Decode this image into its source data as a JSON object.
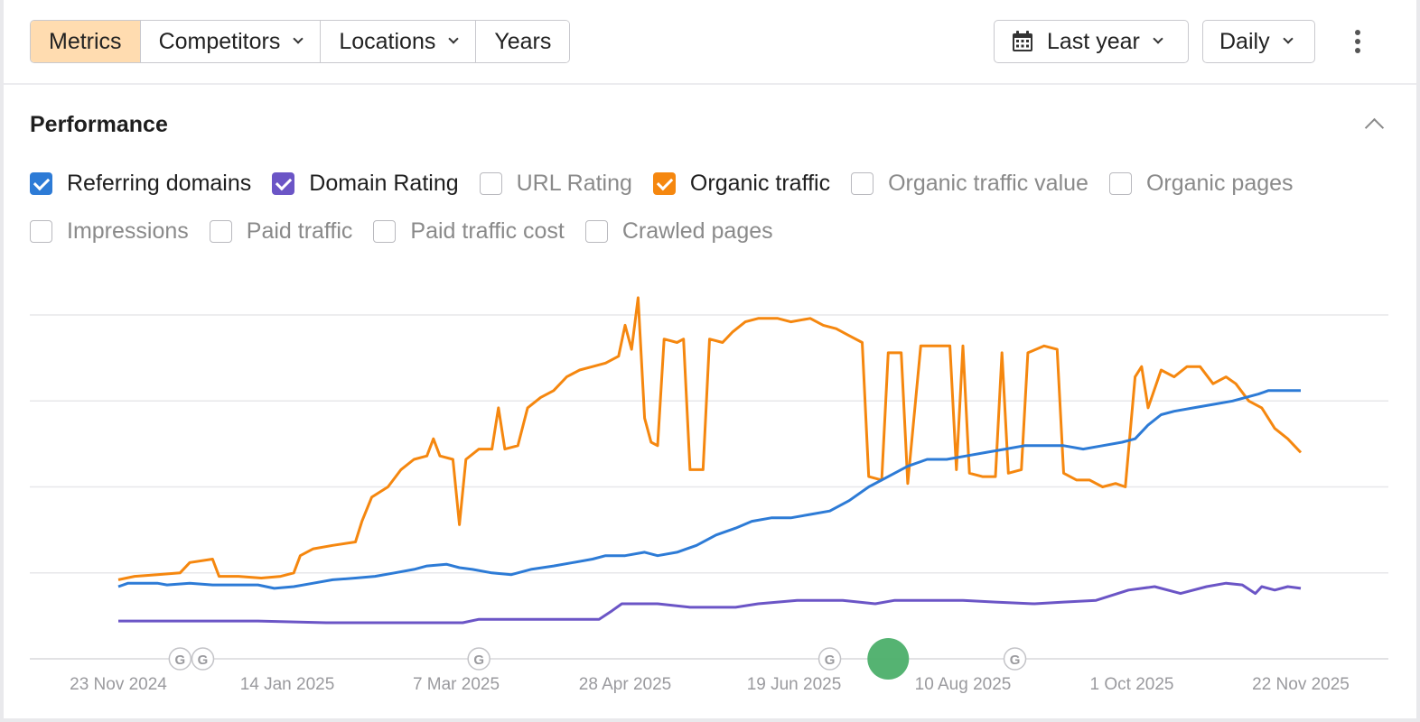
{
  "toolbar": {
    "tabs": [
      {
        "label": "Metrics",
        "active": true,
        "dropdown": false
      },
      {
        "label": "Competitors",
        "active": false,
        "dropdown": true
      },
      {
        "label": "Locations",
        "active": false,
        "dropdown": true
      },
      {
        "label": "Years",
        "active": false,
        "dropdown": false
      }
    ],
    "date_range": {
      "label": "Last year",
      "icon": "calendar-icon"
    },
    "interval": {
      "label": "Daily"
    },
    "more_icon": "kebab-menu-icon"
  },
  "performance": {
    "title": "Performance",
    "collapse_icon": "chevron-up-icon",
    "metrics_row1": [
      {
        "label": "Referring domains",
        "checked": true,
        "color": "#2d7bd6"
      },
      {
        "label": "Domain Rating",
        "checked": true,
        "color": "#6b55c6"
      },
      {
        "label": "URL Rating",
        "checked": false,
        "color": ""
      },
      {
        "label": "Organic traffic",
        "checked": true,
        "color": "#f5870f"
      },
      {
        "label": "Organic traffic value",
        "checked": false,
        "color": ""
      },
      {
        "label": "Organic pages",
        "checked": false,
        "color": ""
      }
    ],
    "metrics_row2": [
      {
        "label": "Impressions",
        "checked": false,
        "color": ""
      },
      {
        "label": "Paid traffic",
        "checked": false,
        "color": ""
      },
      {
        "label": "Paid traffic cost",
        "checked": false,
        "color": ""
      },
      {
        "label": "Crawled pages",
        "checked": false,
        "color": ""
      }
    ]
  },
  "chart_data": {
    "type": "line",
    "grid": true,
    "y_axis_labels": false,
    "x_tick_labels": [
      "23 Nov 2024",
      "14 Jan 2025",
      "7 Mar 2025",
      "28 Apr 2025",
      "19 Jun 2025",
      "10 Aug 2025",
      "1 Oct 2025",
      "22 Nov 2025"
    ],
    "x_range": [
      "2024-11-23",
      "2025-11-22"
    ],
    "y_range": [
      0,
      100
    ],
    "grid_lines": 5,
    "annotation_marker": {
      "label": "G",
      "icon": "google-update-icon",
      "dates": [
        "2024-12-12",
        "2024-12-19",
        "2025-03-14",
        "2025-06-30",
        "2025-08-26"
      ]
    },
    "current_marker": {
      "date": "2025-07-18",
      "color": "#4caf6a"
    },
    "series": [
      {
        "color": "#f5870f",
        "points": [
          [
            "2024-11-23",
            23
          ],
          [
            "2024-11-28",
            24
          ],
          [
            "2024-12-05",
            24.5
          ],
          [
            "2024-12-12",
            25
          ],
          [
            "2024-12-15",
            28
          ],
          [
            "2024-12-22",
            29
          ],
          [
            "2024-12-24",
            24
          ],
          [
            "2024-12-30",
            24
          ],
          [
            "2025-01-06",
            23.5
          ],
          [
            "2025-01-12",
            24
          ],
          [
            "2025-01-16",
            25
          ],
          [
            "2025-01-18",
            30
          ],
          [
            "2025-01-22",
            32
          ],
          [
            "2025-01-28",
            33
          ],
          [
            "2025-02-04",
            34
          ],
          [
            "2025-02-06",
            40
          ],
          [
            "2025-02-09",
            47
          ],
          [
            "2025-02-14",
            50
          ],
          [
            "2025-02-18",
            55
          ],
          [
            "2025-02-22",
            58
          ],
          [
            "2025-02-26",
            59
          ],
          [
            "2025-02-28",
            64
          ],
          [
            "2025-03-02",
            59
          ],
          [
            "2025-03-06",
            58
          ],
          [
            "2025-03-08",
            39
          ],
          [
            "2025-03-10",
            58
          ],
          [
            "2025-03-14",
            61
          ],
          [
            "2025-03-18",
            61
          ],
          [
            "2025-03-20",
            73
          ],
          [
            "2025-03-22",
            61
          ],
          [
            "2025-03-26",
            62
          ],
          [
            "2025-03-29",
            73
          ],
          [
            "2025-04-02",
            76
          ],
          [
            "2025-04-06",
            78
          ],
          [
            "2025-04-10",
            82
          ],
          [
            "2025-04-14",
            84
          ],
          [
            "2025-04-18",
            85
          ],
          [
            "2025-04-22",
            86
          ],
          [
            "2025-04-26",
            88
          ],
          [
            "2025-04-28",
            97
          ],
          [
            "2025-04-30",
            90
          ],
          [
            "2025-05-02",
            105
          ],
          [
            "2025-05-04",
            70
          ],
          [
            "2025-05-06",
            63
          ],
          [
            "2025-05-08",
            62
          ],
          [
            "2025-05-10",
            93
          ],
          [
            "2025-05-14",
            92
          ],
          [
            "2025-05-16",
            93
          ],
          [
            "2025-05-18",
            55
          ],
          [
            "2025-05-22",
            55
          ],
          [
            "2025-05-24",
            93
          ],
          [
            "2025-05-28",
            92
          ],
          [
            "2025-05-31",
            95
          ],
          [
            "2025-06-04",
            98
          ],
          [
            "2025-06-08",
            99
          ],
          [
            "2025-06-14",
            99
          ],
          [
            "2025-06-18",
            98
          ],
          [
            "2025-06-24",
            99
          ],
          [
            "2025-06-28",
            97
          ],
          [
            "2025-07-02",
            96
          ],
          [
            "2025-07-06",
            94
          ],
          [
            "2025-07-10",
            92
          ],
          [
            "2025-07-12",
            53
          ],
          [
            "2025-07-16",
            52
          ],
          [
            "2025-07-18",
            89
          ],
          [
            "2025-07-22",
            89
          ],
          [
            "2025-07-24",
            51
          ],
          [
            "2025-07-28",
            91
          ],
          [
            "2025-08-02",
            91
          ],
          [
            "2025-08-06",
            91
          ],
          [
            "2025-08-08",
            55
          ],
          [
            "2025-08-10",
            91
          ],
          [
            "2025-08-12",
            54
          ],
          [
            "2025-08-16",
            53
          ],
          [
            "2025-08-20",
            53
          ],
          [
            "2025-08-22",
            89
          ],
          [
            "2025-08-24",
            54
          ],
          [
            "2025-08-28",
            55
          ],
          [
            "2025-08-30",
            89
          ],
          [
            "2025-09-04",
            91
          ],
          [
            "2025-09-08",
            90
          ],
          [
            "2025-09-10",
            54
          ],
          [
            "2025-09-14",
            52
          ],
          [
            "2025-09-18",
            52
          ],
          [
            "2025-09-22",
            50
          ],
          [
            "2025-09-26",
            51
          ],
          [
            "2025-09-29",
            50
          ],
          [
            "2025-10-02",
            82
          ],
          [
            "2025-10-04",
            85
          ],
          [
            "2025-10-06",
            73
          ],
          [
            "2025-10-10",
            84
          ],
          [
            "2025-10-14",
            82
          ],
          [
            "2025-10-18",
            85
          ],
          [
            "2025-10-22",
            85
          ],
          [
            "2025-10-26",
            80
          ],
          [
            "2025-10-30",
            82
          ],
          [
            "2025-11-02",
            80
          ],
          [
            "2025-11-06",
            75
          ],
          [
            "2025-11-10",
            73
          ],
          [
            "2025-11-14",
            67
          ],
          [
            "2025-11-18",
            64
          ],
          [
            "2025-11-20",
            62
          ],
          [
            "2025-11-22",
            60
          ]
        ]
      },
      {
        "color": "#2d7bd6",
        "points": [
          [
            "2024-11-23",
            21
          ],
          [
            "2024-11-26",
            22
          ],
          [
            "2024-12-05",
            22
          ],
          [
            "2024-12-08",
            21.5
          ],
          [
            "2024-12-15",
            22
          ],
          [
            "2024-12-22",
            21.5
          ],
          [
            "2024-12-29",
            21.5
          ],
          [
            "2025-01-05",
            21.5
          ],
          [
            "2025-01-10",
            20.5
          ],
          [
            "2025-01-16",
            21
          ],
          [
            "2025-01-22",
            22
          ],
          [
            "2025-01-28",
            23
          ],
          [
            "2025-02-04",
            23.5
          ],
          [
            "2025-02-10",
            24
          ],
          [
            "2025-02-16",
            25
          ],
          [
            "2025-02-22",
            26
          ],
          [
            "2025-02-26",
            27
          ],
          [
            "2025-03-04",
            27.5
          ],
          [
            "2025-03-08",
            26.5
          ],
          [
            "2025-03-12",
            26
          ],
          [
            "2025-03-18",
            25
          ],
          [
            "2025-03-24",
            24.5
          ],
          [
            "2025-03-30",
            26
          ],
          [
            "2025-04-06",
            27
          ],
          [
            "2025-04-12",
            28
          ],
          [
            "2025-04-18",
            29
          ],
          [
            "2025-04-22",
            30
          ],
          [
            "2025-04-28",
            30
          ],
          [
            "2025-05-04",
            31
          ],
          [
            "2025-05-08",
            30
          ],
          [
            "2025-05-14",
            31
          ],
          [
            "2025-05-20",
            33
          ],
          [
            "2025-05-26",
            36
          ],
          [
            "2025-06-01",
            38
          ],
          [
            "2025-06-06",
            40
          ],
          [
            "2025-06-12",
            41
          ],
          [
            "2025-06-18",
            41
          ],
          [
            "2025-06-24",
            42
          ],
          [
            "2025-06-30",
            43
          ],
          [
            "2025-07-06",
            46
          ],
          [
            "2025-07-12",
            50
          ],
          [
            "2025-07-18",
            53
          ],
          [
            "2025-07-24",
            56
          ],
          [
            "2025-07-30",
            58
          ],
          [
            "2025-08-05",
            58
          ],
          [
            "2025-08-11",
            59
          ],
          [
            "2025-08-17",
            60
          ],
          [
            "2025-08-23",
            61
          ],
          [
            "2025-08-29",
            62
          ],
          [
            "2025-09-04",
            62
          ],
          [
            "2025-09-10",
            62
          ],
          [
            "2025-09-16",
            61
          ],
          [
            "2025-09-22",
            62
          ],
          [
            "2025-09-28",
            63
          ],
          [
            "2025-10-02",
            64
          ],
          [
            "2025-10-06",
            68
          ],
          [
            "2025-10-10",
            71
          ],
          [
            "2025-10-14",
            72
          ],
          [
            "2025-10-20",
            73
          ],
          [
            "2025-10-26",
            74
          ],
          [
            "2025-11-01",
            75
          ],
          [
            "2025-11-05",
            76
          ],
          [
            "2025-11-09",
            77
          ],
          [
            "2025-11-12",
            78
          ],
          [
            "2025-11-15",
            78
          ],
          [
            "2025-11-18",
            78
          ],
          [
            "2025-11-22",
            78
          ]
        ]
      },
      {
        "color": "#6b55c6",
        "points": [
          [
            "2024-11-23",
            11
          ],
          [
            "2024-12-15",
            11
          ],
          [
            "2025-01-05",
            11
          ],
          [
            "2025-01-26",
            10.5
          ],
          [
            "2025-02-16",
            10.5
          ],
          [
            "2025-03-09",
            10.5
          ],
          [
            "2025-03-14",
            11.5
          ],
          [
            "2025-03-30",
            11.5
          ],
          [
            "2025-04-20",
            11.5
          ],
          [
            "2025-04-24",
            14
          ],
          [
            "2025-04-27",
            16
          ],
          [
            "2025-05-08",
            16
          ],
          [
            "2025-05-18",
            15
          ],
          [
            "2025-06-01",
            15
          ],
          [
            "2025-06-08",
            16
          ],
          [
            "2025-06-20",
            17
          ],
          [
            "2025-07-04",
            17
          ],
          [
            "2025-07-14",
            16
          ],
          [
            "2025-07-20",
            17
          ],
          [
            "2025-08-01",
            17
          ],
          [
            "2025-08-10",
            17
          ],
          [
            "2025-08-20",
            16.5
          ],
          [
            "2025-09-01",
            16
          ],
          [
            "2025-09-10",
            16.5
          ],
          [
            "2025-09-20",
            17
          ],
          [
            "2025-09-30",
            20
          ],
          [
            "2025-10-08",
            21
          ],
          [
            "2025-10-16",
            19
          ],
          [
            "2025-10-24",
            21
          ],
          [
            "2025-10-30",
            22
          ],
          [
            "2025-11-04",
            21.5
          ],
          [
            "2025-11-08",
            19
          ],
          [
            "2025-11-10",
            21
          ],
          [
            "2025-11-14",
            20
          ],
          [
            "2025-11-18",
            21
          ],
          [
            "2025-11-22",
            20.5
          ]
        ]
      }
    ]
  }
}
